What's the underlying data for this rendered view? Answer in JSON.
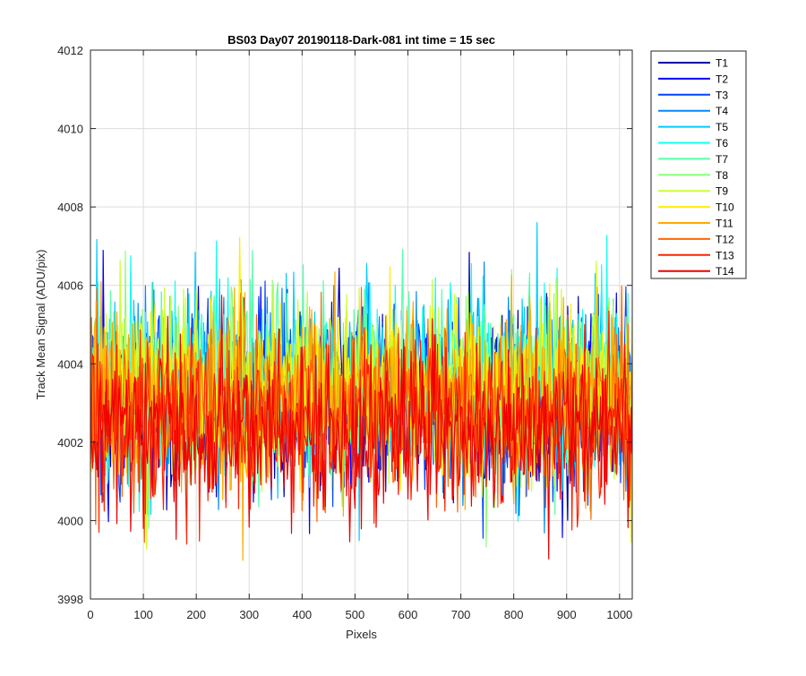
{
  "chart_data": {
    "type": "line",
    "title": "BS03 Day07 20190118-Dark-081 int time = 15 sec",
    "xlabel": "Pixels",
    "ylabel": "Track Mean Signal (ADU/pix)",
    "xlim": [
      0,
      1024
    ],
    "ylim": [
      3998,
      4012
    ],
    "xticks": [
      0,
      100,
      200,
      300,
      400,
      500,
      600,
      700,
      800,
      900,
      1000
    ],
    "yticks": [
      3998,
      4000,
      4002,
      4004,
      4006,
      4008,
      4010,
      4012
    ],
    "grid": true,
    "legend_position": "outside-top-right",
    "series": [
      {
        "name": "T1",
        "color": "#0000a8",
        "mean": 4003.0,
        "spread": 1.4
      },
      {
        "name": "T2",
        "color": "#0000ff",
        "mean": 4003.1,
        "spread": 1.4
      },
      {
        "name": "T3",
        "color": "#0044ff",
        "mean": 4003.2,
        "spread": 1.4
      },
      {
        "name": "T4",
        "color": "#0088ff",
        "mean": 4003.3,
        "spread": 1.4
      },
      {
        "name": "T5",
        "color": "#00ccff",
        "mean": 4003.3,
        "spread": 1.4
      },
      {
        "name": "T6",
        "color": "#11ffee",
        "mean": 4003.4,
        "spread": 1.4
      },
      {
        "name": "T7",
        "color": "#55ffaa",
        "mean": 4003.4,
        "spread": 1.4
      },
      {
        "name": "T8",
        "color": "#88ff77",
        "mean": 4003.5,
        "spread": 1.4
      },
      {
        "name": "T9",
        "color": "#ccff33",
        "mean": 4003.4,
        "spread": 1.4
      },
      {
        "name": "T10",
        "color": "#ffee00",
        "mean": 4003.3,
        "spread": 1.4
      },
      {
        "name": "T11",
        "color": "#ffaa00",
        "mean": 4003.1,
        "spread": 1.4
      },
      {
        "name": "T12",
        "color": "#ff6600",
        "mean": 4002.9,
        "spread": 1.4
      },
      {
        "name": "T13",
        "color": "#ff2200",
        "mean": 4002.6,
        "spread": 1.4
      },
      {
        "name": "T14",
        "color": "#ee0000",
        "mean": 4002.3,
        "spread": 1.4
      }
    ]
  }
}
